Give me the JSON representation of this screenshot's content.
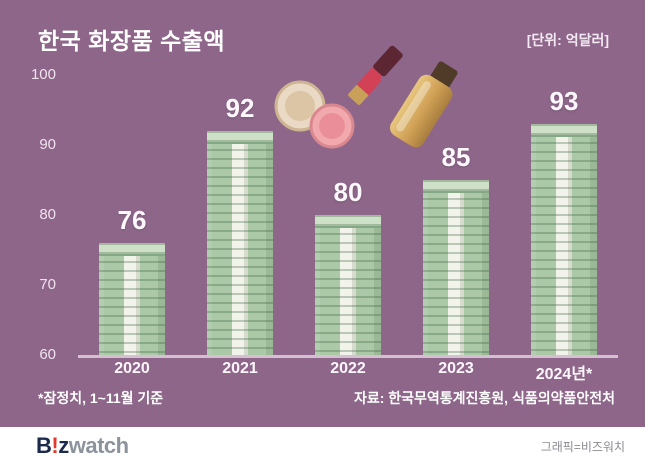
{
  "chart_data": {
    "type": "bar",
    "title": "한국 화장품 수출액",
    "unit_label": "[단위: 억달러]",
    "categories": [
      "2020",
      "2021",
      "2022",
      "2023",
      "2024년*"
    ],
    "values": [
      76,
      92,
      80,
      85,
      93
    ],
    "ylim": [
      60,
      100
    ],
    "yticks": [
      100,
      90,
      80,
      70,
      60
    ],
    "grid": false,
    "legend_position": "none",
    "footnote_left": "*잠정치, 1~11월 기준",
    "footnote_right": "자료: 한국무역통계진흥원, 식품의약품안전처"
  },
  "footer": {
    "logo_b": "B",
    "logo_bang": "!",
    "logo_z": "z",
    "logo_watch": "watch",
    "credit": "그래픽=비즈워치"
  },
  "colors": {
    "background": "#8d6689",
    "bar_green": "#abc8a7",
    "bar_cap": "#cfe0c8",
    "strap_white": "#f2f3ea",
    "axis_line": "#d5c0d2",
    "text_white": "#ffffff",
    "logo_navy": "#1b2a4a",
    "logo_red": "#e03a2f",
    "credit_gray": "#8b8b93"
  }
}
